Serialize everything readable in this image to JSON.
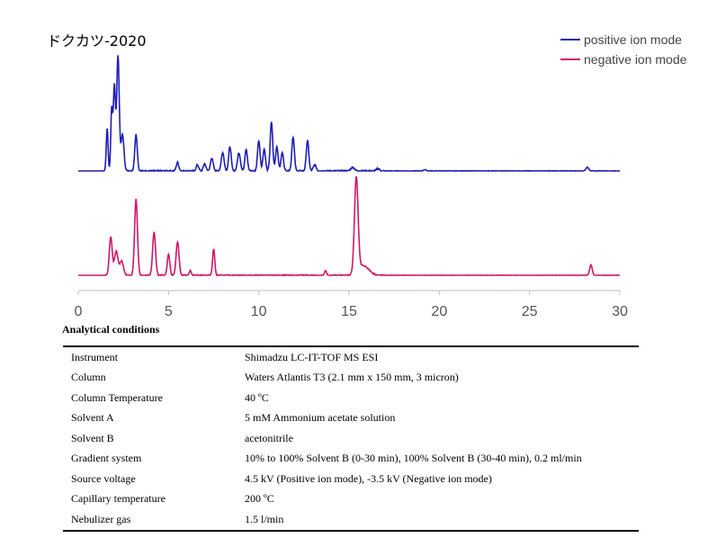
{
  "chart_data": {
    "type": "line",
    "title": "ドクカツ-2020",
    "xlabel": "",
    "ylabel": "",
    "xlim": [
      0,
      30
    ],
    "xticks": [
      "0",
      "5",
      "10",
      "15",
      "20",
      "25",
      "30"
    ],
    "legend_position": "top-right",
    "series": [
      {
        "name": "positive ion mode",
        "color": "#1f1fb4",
        "baseline": 0.0,
        "peaks": [
          [
            1.6,
            0.35,
            0.05
          ],
          [
            1.85,
            0.5,
            0.05
          ],
          [
            2.0,
            0.7,
            0.06
          ],
          [
            2.2,
            0.95,
            0.07
          ],
          [
            2.45,
            0.3,
            0.08
          ],
          [
            3.2,
            0.3,
            0.07
          ],
          [
            5.5,
            0.07,
            0.07
          ],
          [
            6.6,
            0.05,
            0.07
          ],
          [
            7.0,
            0.06,
            0.07
          ],
          [
            7.4,
            0.1,
            0.08
          ],
          [
            8.0,
            0.15,
            0.08
          ],
          [
            8.4,
            0.2,
            0.07
          ],
          [
            8.9,
            0.15,
            0.08
          ],
          [
            9.3,
            0.18,
            0.07
          ],
          [
            10.0,
            0.25,
            0.07
          ],
          [
            10.3,
            0.18,
            0.07
          ],
          [
            10.7,
            0.4,
            0.07
          ],
          [
            11.0,
            0.2,
            0.07
          ],
          [
            11.3,
            0.15,
            0.07
          ],
          [
            11.9,
            0.28,
            0.07
          ],
          [
            12.7,
            0.25,
            0.07
          ],
          [
            13.1,
            0.05,
            0.08
          ],
          [
            15.2,
            0.03,
            0.1
          ],
          [
            16.6,
            0.02,
            0.08
          ],
          [
            19.2,
            0.01,
            0.08
          ],
          [
            28.2,
            0.03,
            0.08
          ]
        ]
      },
      {
        "name": "negative ion mode",
        "color": "#d0186a",
        "baseline": 0.0,
        "peaks": [
          [
            1.8,
            0.4,
            0.08
          ],
          [
            2.1,
            0.25,
            0.1
          ],
          [
            2.4,
            0.15,
            0.1
          ],
          [
            3.2,
            0.8,
            0.08
          ],
          [
            4.2,
            0.45,
            0.08
          ],
          [
            5.0,
            0.22,
            0.07
          ],
          [
            5.5,
            0.35,
            0.08
          ],
          [
            6.2,
            0.05,
            0.06
          ],
          [
            7.5,
            0.28,
            0.06
          ],
          [
            13.7,
            0.05,
            0.05
          ],
          [
            15.4,
            1.0,
            0.1
          ],
          [
            15.8,
            0.1,
            0.3
          ],
          [
            28.4,
            0.11,
            0.07
          ]
        ]
      }
    ]
  },
  "analytical_conditions": {
    "title": "Analytical conditions",
    "rows": [
      {
        "param": "Instrument",
        "value": "Shimadzu LC-IT-TOF MS ESI"
      },
      {
        "param": "Column",
        "value": "Waters Atlantis T3 (2.1 mm x 150 mm, 3 micron)"
      },
      {
        "param": "Column Temperature",
        "value": "40 ºC"
      },
      {
        "param": "Solvent A",
        "value": "5 mM Ammonium acetate solution"
      },
      {
        "param": "Solvent B",
        "value": "acetonitrile"
      },
      {
        "param": "Gradient system",
        "value": "10% to 100% Solvent B (0-30 min), 100% Solvent B (30-40 min), 0.2 ml/min"
      },
      {
        "param": "Source voltage",
        "value": "4.5 kV (Positive ion mode), -3.5 kV (Negative ion mode)"
      },
      {
        "param": "Capillary temperature",
        "value": "200 ºC"
      },
      {
        "param": "Nebulizer gas",
        "value": "1.5 l/min"
      }
    ]
  }
}
